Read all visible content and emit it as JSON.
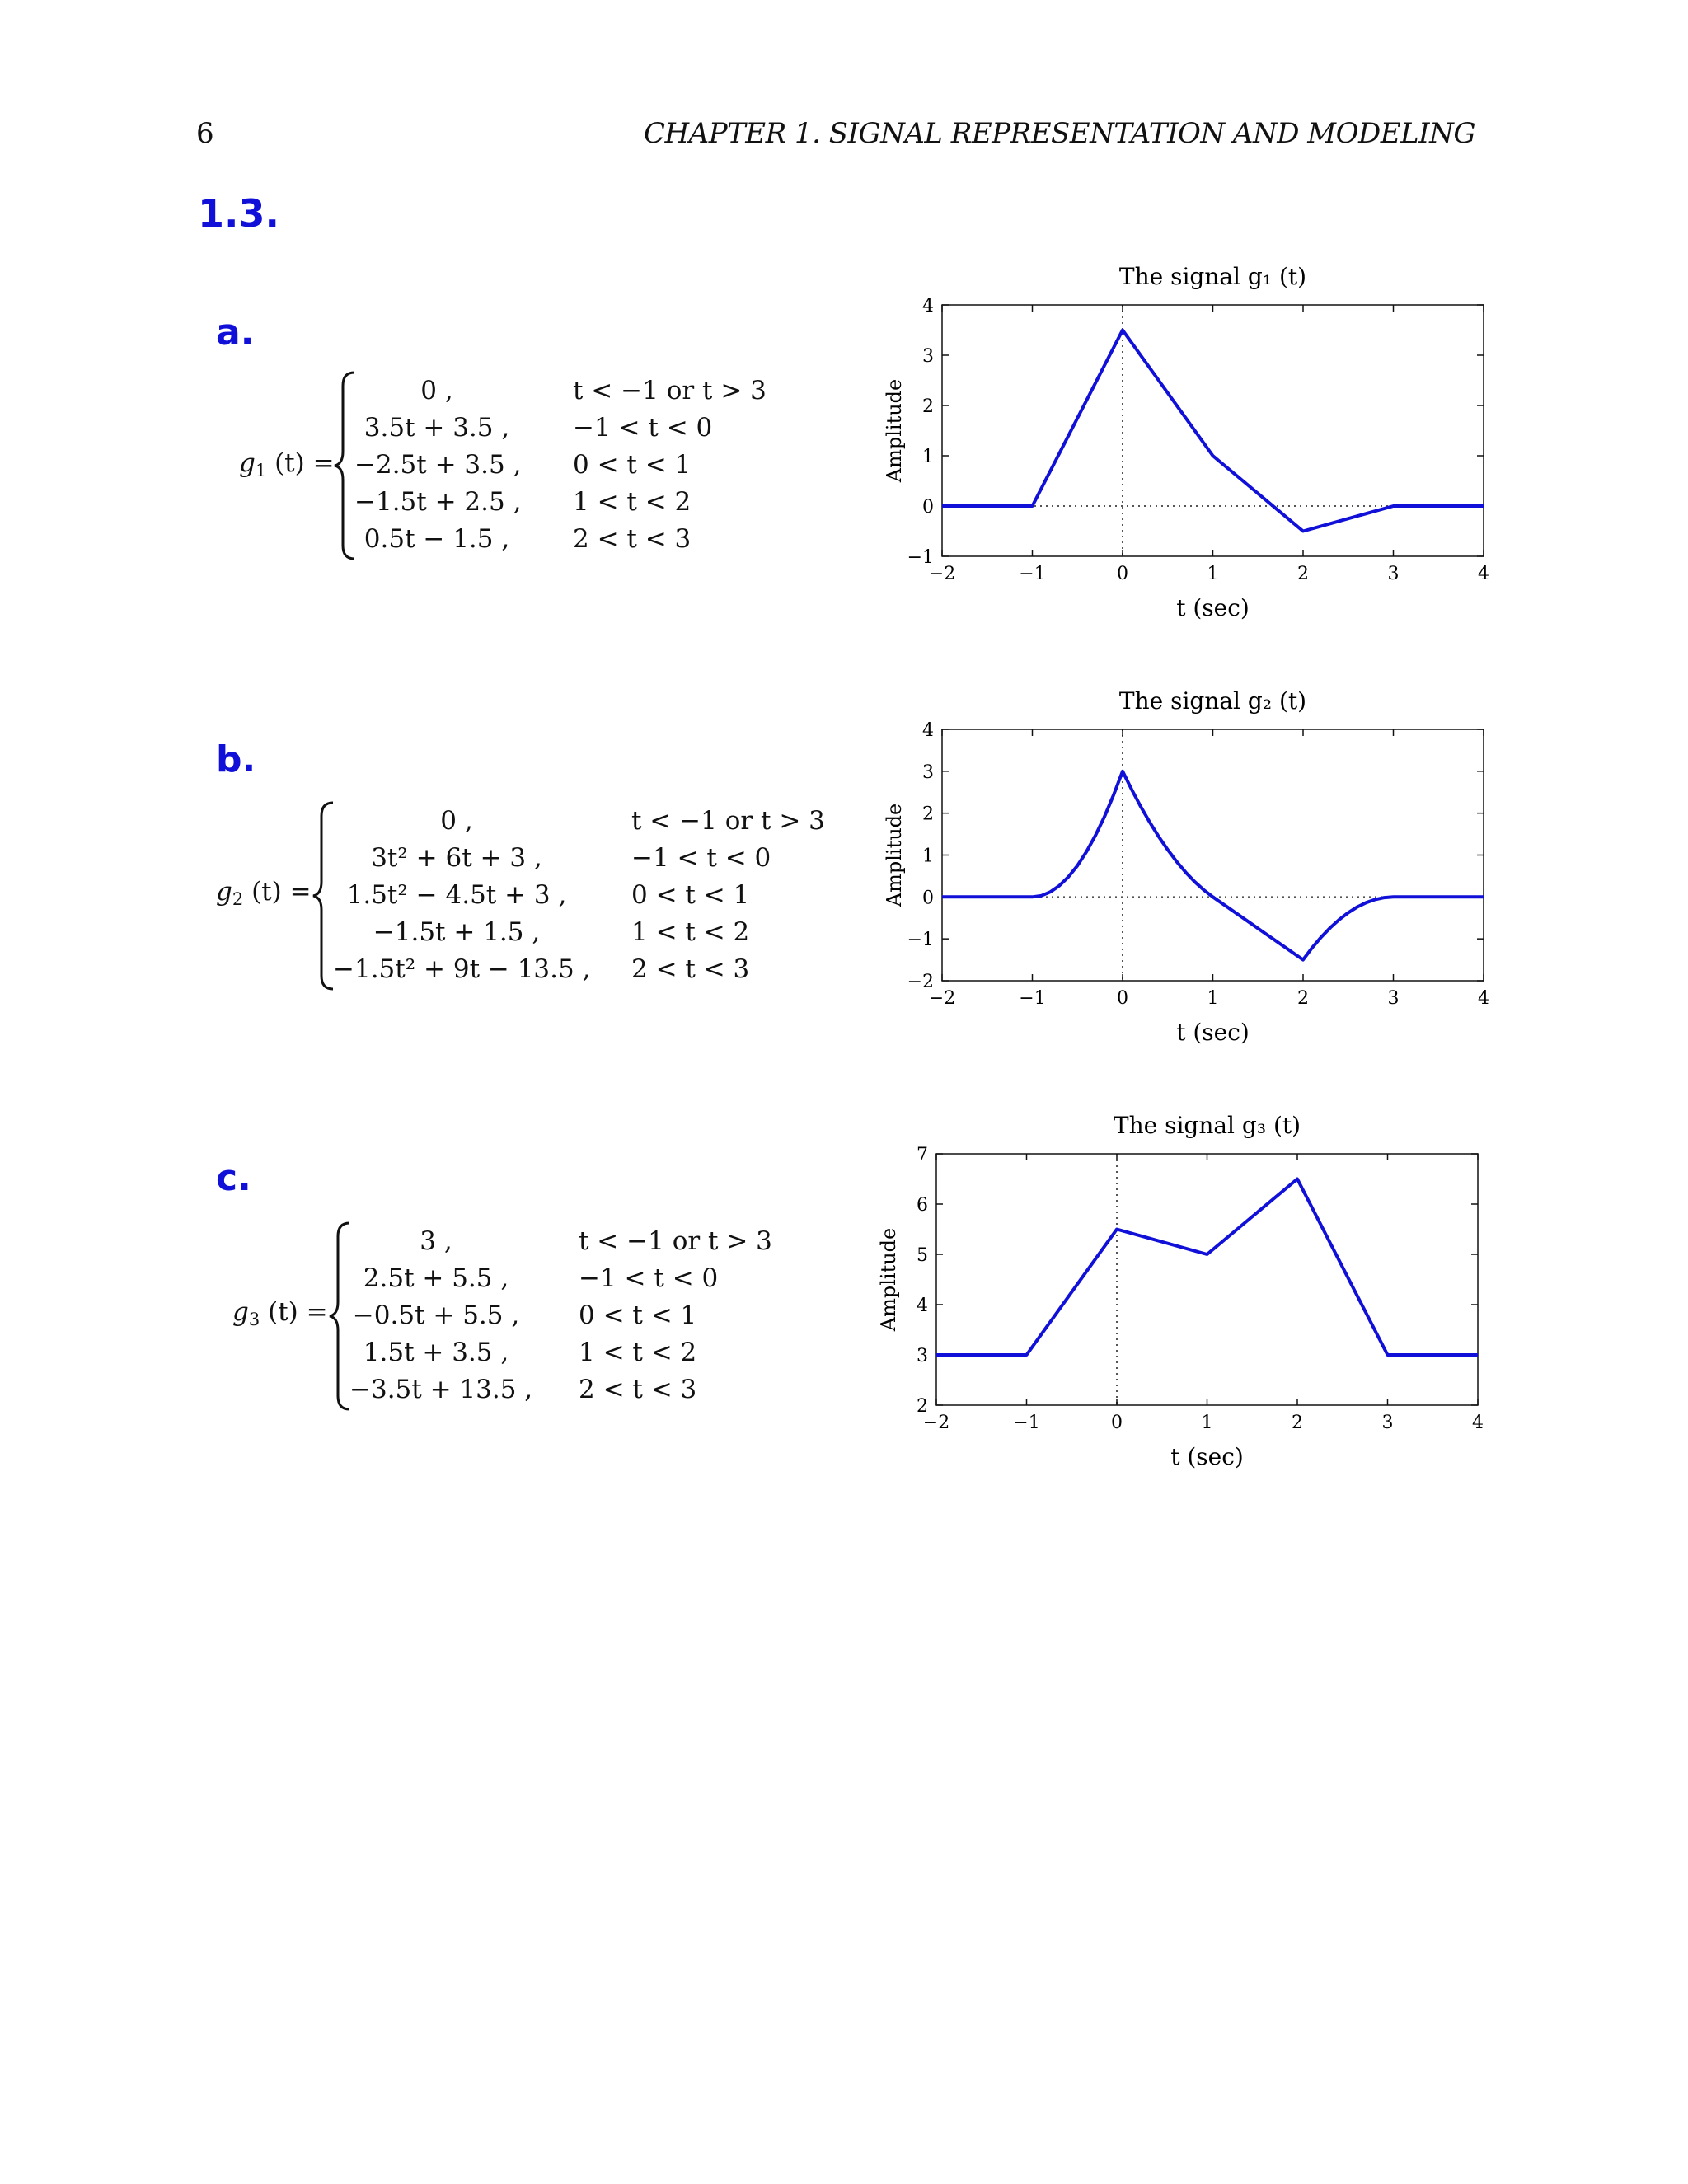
{
  "header": {
    "page_number": "6",
    "running_head": "CHAPTER 1.  SIGNAL REPRESENTATION AND MODELING"
  },
  "section": {
    "title": "1.3."
  },
  "parts": [
    {
      "label": "a.",
      "function_lhs": {
        "name": "g",
        "sub": "1",
        "arg": " (t) ="
      },
      "cases": [
        {
          "expr": "0 ,",
          "cond": "t < −1  or  t > 3"
        },
        {
          "expr": "3.5t + 3.5 ,",
          "cond": "−1 < t < 0"
        },
        {
          "expr": "−2.5t + 3.5 ,",
          "cond": "0 < t < 1"
        },
        {
          "expr": "−1.5t + 2.5 ,",
          "cond": "1 < t < 2"
        },
        {
          "expr": "0.5t − 1.5 ,",
          "cond": "2 < t < 3"
        }
      ]
    },
    {
      "label": "b.",
      "function_lhs": {
        "name": "g",
        "sub": "2",
        "arg": " (t) ="
      },
      "cases": [
        {
          "expr": "0 ,",
          "cond": "t < −1  or  t > 3"
        },
        {
          "expr": "3t² + 6t + 3 ,",
          "cond": "−1 < t < 0"
        },
        {
          "expr": "1.5t² − 4.5t + 3 ,",
          "cond": "0 < t < 1"
        },
        {
          "expr": "−1.5t + 1.5 ,",
          "cond": "1 < t < 2"
        },
        {
          "expr": "−1.5t² + 9t − 13.5 ,",
          "cond": "2 < t < 3"
        }
      ]
    },
    {
      "label": "c.",
      "function_lhs": {
        "name": "g",
        "sub": "3",
        "arg": " (t) ="
      },
      "cases": [
        {
          "expr": "3 ,",
          "cond": "t < −1  or  t > 3"
        },
        {
          "expr": "2.5t + 5.5 ,",
          "cond": "−1 < t < 0"
        },
        {
          "expr": "−0.5t + 5.5 ,",
          "cond": "0 < t < 1"
        },
        {
          "expr": "1.5t + 3.5 ,",
          "cond": "1 < t < 2"
        },
        {
          "expr": "−3.5t + 13.5 ,",
          "cond": "2 < t < 3"
        }
      ]
    }
  ],
  "chart_data": [
    {
      "type": "line",
      "title": "The signal g₁ (t)",
      "xlabel": "t (sec)",
      "ylabel": "Amplitude",
      "xlim": [
        -2,
        4
      ],
      "ylim": [
        -1,
        4
      ],
      "xticks": [
        "−2",
        "−1",
        "0",
        "1",
        "2",
        "3",
        "4"
      ],
      "yticks": [
        "−1",
        "0",
        "1",
        "2",
        "3",
        "4"
      ],
      "grid": false,
      "reference_lines": {
        "x": 0,
        "y": 0,
        "style": "dotted"
      },
      "color": "#1010d8",
      "series": [
        {
          "x": [
            -2,
            -1,
            0,
            1,
            2,
            3,
            4
          ],
          "y": [
            0,
            0,
            3.5,
            1,
            -0.5,
            0,
            0
          ]
        }
      ]
    },
    {
      "type": "line",
      "title": "The signal g₂ (t)",
      "xlabel": "t (sec)",
      "ylabel": "Amplitude",
      "xlim": [
        -2,
        4
      ],
      "ylim": [
        -2,
        4
      ],
      "xticks": [
        "−2",
        "−1",
        "0",
        "1",
        "2",
        "3",
        "4"
      ],
      "yticks": [
        "−2",
        "−1",
        "0",
        "1",
        "2",
        "3",
        "4"
      ],
      "grid": false,
      "reference_lines": {
        "x": 0,
        "y": 0,
        "style": "dotted"
      },
      "color": "#1010d8",
      "series": [
        {
          "x": [
            -2,
            -1,
            -0.9,
            -0.8,
            -0.7,
            -0.6,
            -0.5,
            -0.4,
            -0.3,
            -0.2,
            -0.1,
            0,
            0.1,
            0.2,
            0.3,
            0.4,
            0.5,
            0.6,
            0.7,
            0.8,
            0.9,
            1,
            2,
            2.1,
            2.2,
            2.3,
            2.4,
            2.5,
            2.6,
            2.7,
            2.8,
            2.9,
            3,
            4
          ],
          "y": [
            0,
            0,
            0.03,
            0.12,
            0.27,
            0.48,
            0.75,
            1.08,
            1.47,
            1.92,
            2.43,
            3,
            2.565,
            2.16,
            1.785,
            1.44,
            1.125,
            0.84,
            0.585,
            0.36,
            0.165,
            0,
            -1.5,
            -1.215,
            -0.96,
            -0.735,
            -0.54,
            -0.375,
            -0.24,
            -0.135,
            -0.06,
            -0.015,
            0,
            0
          ]
        }
      ]
    },
    {
      "type": "line",
      "title": "The signal g₃ (t)",
      "xlabel": "t (sec)",
      "ylabel": "Amplitude",
      "xlim": [
        -2,
        4
      ],
      "ylim": [
        2,
        7
      ],
      "xticks": [
        "−2",
        "−1",
        "0",
        "1",
        "2",
        "3",
        "4"
      ],
      "yticks": [
        "2",
        "3",
        "4",
        "5",
        "6",
        "7"
      ],
      "grid": false,
      "reference_lines": {
        "x": 0,
        "style": "dotted"
      },
      "color": "#1010d8",
      "series": [
        {
          "x": [
            -2,
            -1,
            0,
            1,
            2,
            3,
            4
          ],
          "y": [
            3,
            3,
            5.5,
            5,
            6.5,
            3,
            3
          ]
        }
      ]
    }
  ]
}
